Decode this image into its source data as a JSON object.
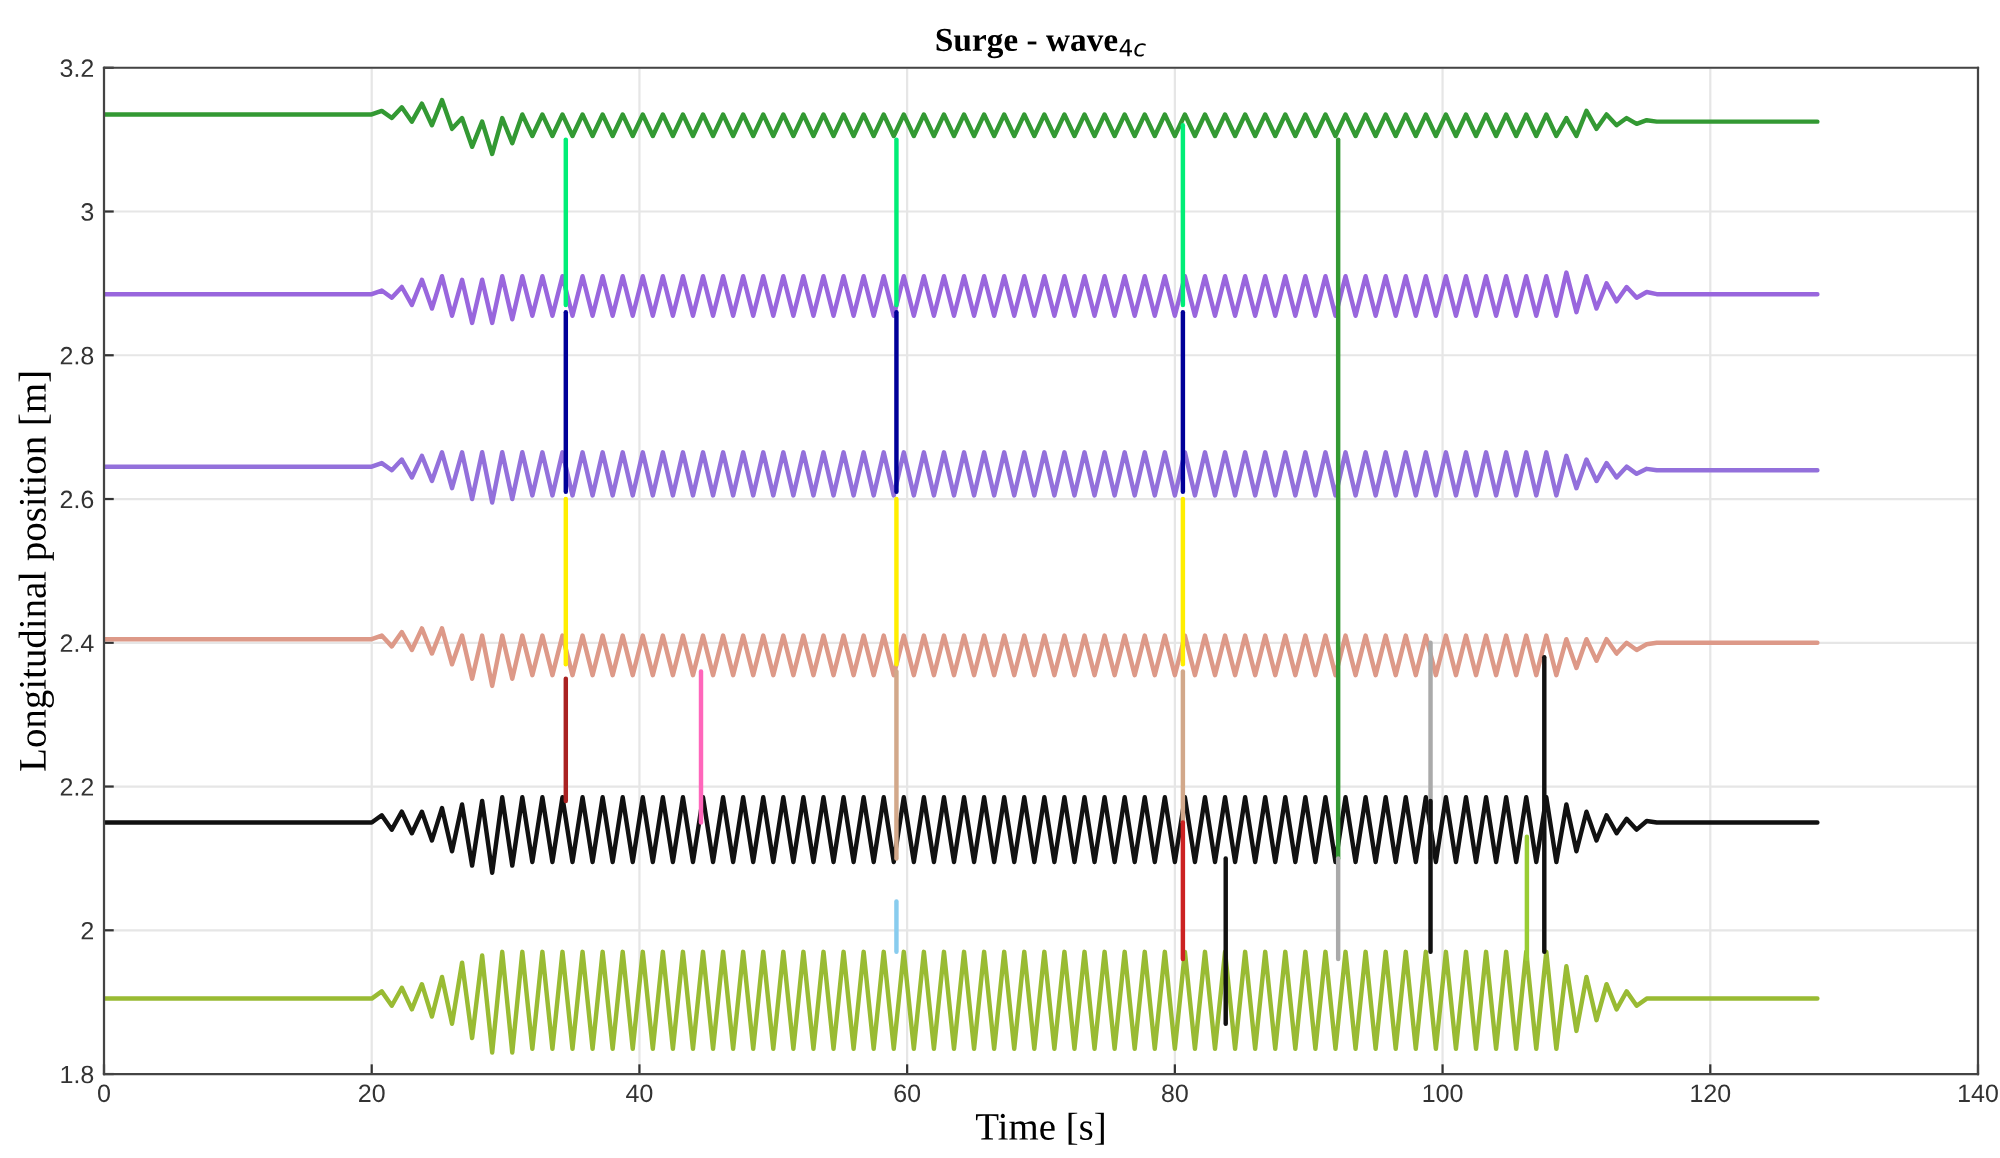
{
  "chart_data": {
    "type": "line",
    "title": "Surge - wave$_{4c}$",
    "xlabel": "Time [s]",
    "ylabel": "Longitudinal position [m]",
    "xlim": [
      0,
      140
    ],
    "ylim": [
      1.8,
      3.2
    ],
    "xticks": [
      0,
      20,
      40,
      60,
      80,
      100,
      120,
      140
    ],
    "yticks": [
      1.8,
      2,
      2.2,
      2.4,
      2.6,
      2.8,
      3,
      3.2
    ],
    "grid": true,
    "legend": false,
    "marker": "none",
    "line_style": "solid",
    "x": [
      0,
      20,
      20.75,
      21.5,
      22.25,
      23,
      23.75,
      24.5,
      25.25,
      26,
      26.75,
      27.5,
      28.25,
      29,
      29.75,
      30.5,
      31.25,
      32,
      32.75,
      33.5,
      34.25,
      35,
      35.75,
      36.5,
      37.25,
      38,
      38.75,
      39.5,
      40.25,
      41,
      41.75,
      42.5,
      43.25,
      44,
      44.75,
      45.5,
      46.25,
      47,
      47.75,
      48.5,
      49.25,
      50,
      50.75,
      51.5,
      52.25,
      53,
      53.75,
      54.5,
      55.25,
      56,
      56.75,
      57.5,
      58.25,
      59,
      59.75,
      60.5,
      61.25,
      62,
      62.75,
      63.5,
      64.25,
      65,
      65.75,
      66.5,
      67.25,
      68,
      68.75,
      69.5,
      70.25,
      71,
      71.75,
      72.5,
      73.25,
      74,
      74.75,
      75.5,
      76.25,
      77,
      77.75,
      78.5,
      79.25,
      80,
      80.75,
      81.5,
      82.25,
      83,
      83.75,
      84.5,
      85.25,
      86,
      86.75,
      87.5,
      88.25,
      89,
      89.75,
      90.5,
      91.25,
      92,
      92.75,
      93.5,
      94.25,
      95,
      95.75,
      96.5,
      97.25,
      98,
      98.75,
      99.5,
      100.25,
      101,
      101.75,
      102.5,
      103.25,
      104,
      104.75,
      105.5,
      106.25,
      107,
      107.75,
      108.5,
      109.25,
      110,
      110.75,
      111.5,
      112.25,
      113,
      113.75,
      114.5,
      115.25,
      116,
      128
    ],
    "series": [
      {
        "color": "#339933",
        "values": [
          3.135,
          3.135,
          3.14,
          3.13,
          3.145,
          3.125,
          3.15,
          3.12,
          3.155,
          3.115,
          3.13,
          3.09,
          3.125,
          3.08,
          3.13,
          3.095,
          3.135,
          3.105,
          3.135,
          3.105,
          3.135,
          3.105,
          3.135,
          3.105,
          3.135,
          3.105,
          3.135,
          3.105,
          3.135,
          3.105,
          3.135,
          3.105,
          3.135,
          3.105,
          3.135,
          3.105,
          3.135,
          3.105,
          3.135,
          3.105,
          3.135,
          3.105,
          3.135,
          3.105,
          3.135,
          3.105,
          3.135,
          3.105,
          3.135,
          3.105,
          3.135,
          3.105,
          3.135,
          3.105,
          3.135,
          3.105,
          3.135,
          3.105,
          3.135,
          3.105,
          3.135,
          3.105,
          3.135,
          3.105,
          3.135,
          3.105,
          3.135,
          3.105,
          3.135,
          3.105,
          3.135,
          3.105,
          3.135,
          3.105,
          3.135,
          3.105,
          3.135,
          3.105,
          3.135,
          3.105,
          3.135,
          3.105,
          3.135,
          3.105,
          3.135,
          3.105,
          3.135,
          3.105,
          3.135,
          3.105,
          3.135,
          3.105,
          3.135,
          3.105,
          3.135,
          3.105,
          3.135,
          3.105,
          3.135,
          3.105,
          3.135,
          3.105,
          3.135,
          3.105,
          3.135,
          3.105,
          3.135,
          3.105,
          3.135,
          3.105,
          3.135,
          3.105,
          3.135,
          3.105,
          3.135,
          3.105,
          3.135,
          3.105,
          3.135,
          3.105,
          3.13,
          3.105,
          3.14,
          3.115,
          3.135,
          3.12,
          3.13,
          3.122,
          3.127,
          3.125,
          3.125
        ]
      },
      {
        "color": "#9966dd",
        "values": [
          2.885,
          2.885,
          2.89,
          2.88,
          2.895,
          2.87,
          2.905,
          2.865,
          2.91,
          2.855,
          2.905,
          2.845,
          2.905,
          2.845,
          2.91,
          2.85,
          2.91,
          2.855,
          2.91,
          2.855,
          2.91,
          2.855,
          2.91,
          2.855,
          2.91,
          2.855,
          2.91,
          2.855,
          2.91,
          2.855,
          2.91,
          2.855,
          2.91,
          2.855,
          2.91,
          2.855,
          2.91,
          2.855,
          2.91,
          2.855,
          2.91,
          2.855,
          2.91,
          2.855,
          2.91,
          2.855,
          2.91,
          2.855,
          2.91,
          2.855,
          2.91,
          2.855,
          2.91,
          2.855,
          2.91,
          2.855,
          2.91,
          2.855,
          2.91,
          2.855,
          2.91,
          2.855,
          2.91,
          2.855,
          2.91,
          2.855,
          2.91,
          2.855,
          2.91,
          2.855,
          2.91,
          2.855,
          2.91,
          2.855,
          2.91,
          2.855,
          2.91,
          2.855,
          2.91,
          2.855,
          2.91,
          2.855,
          2.91,
          2.855,
          2.91,
          2.855,
          2.91,
          2.855,
          2.91,
          2.855,
          2.91,
          2.855,
          2.91,
          2.855,
          2.91,
          2.855,
          2.91,
          2.855,
          2.91,
          2.855,
          2.91,
          2.855,
          2.91,
          2.855,
          2.91,
          2.855,
          2.91,
          2.855,
          2.91,
          2.855,
          2.91,
          2.855,
          2.91,
          2.855,
          2.91,
          2.855,
          2.91,
          2.855,
          2.91,
          2.855,
          2.915,
          2.86,
          2.91,
          2.865,
          2.9,
          2.875,
          2.895,
          2.88,
          2.888,
          2.885,
          2.885
        ]
      },
      {
        "color": "#9370db",
        "values": [
          2.645,
          2.645,
          2.65,
          2.64,
          2.655,
          2.63,
          2.66,
          2.625,
          2.665,
          2.615,
          2.665,
          2.6,
          2.665,
          2.595,
          2.665,
          2.6,
          2.665,
          2.605,
          2.665,
          2.605,
          2.665,
          2.605,
          2.665,
          2.605,
          2.665,
          2.605,
          2.665,
          2.605,
          2.665,
          2.605,
          2.665,
          2.605,
          2.665,
          2.605,
          2.665,
          2.605,
          2.665,
          2.605,
          2.665,
          2.605,
          2.665,
          2.605,
          2.665,
          2.605,
          2.665,
          2.605,
          2.665,
          2.605,
          2.665,
          2.605,
          2.665,
          2.605,
          2.665,
          2.605,
          2.665,
          2.605,
          2.665,
          2.605,
          2.665,
          2.605,
          2.665,
          2.605,
          2.665,
          2.605,
          2.665,
          2.605,
          2.665,
          2.605,
          2.665,
          2.605,
          2.665,
          2.605,
          2.665,
          2.605,
          2.665,
          2.605,
          2.665,
          2.605,
          2.665,
          2.605,
          2.665,
          2.605,
          2.665,
          2.605,
          2.665,
          2.605,
          2.665,
          2.605,
          2.665,
          2.605,
          2.665,
          2.605,
          2.665,
          2.605,
          2.665,
          2.605,
          2.665,
          2.605,
          2.665,
          2.605,
          2.665,
          2.605,
          2.665,
          2.605,
          2.665,
          2.605,
          2.665,
          2.605,
          2.665,
          2.605,
          2.665,
          2.605,
          2.665,
          2.605,
          2.665,
          2.605,
          2.665,
          2.605,
          2.665,
          2.605,
          2.66,
          2.615,
          2.655,
          2.625,
          2.65,
          2.63,
          2.645,
          2.635,
          2.642,
          2.64,
          2.64
        ]
      },
      {
        "color": "#dd9988",
        "values": [
          2.405,
          2.405,
          2.41,
          2.395,
          2.415,
          2.39,
          2.42,
          2.385,
          2.42,
          2.37,
          2.41,
          2.35,
          2.41,
          2.34,
          2.41,
          2.35,
          2.41,
          2.355,
          2.41,
          2.355,
          2.41,
          2.355,
          2.41,
          2.355,
          2.41,
          2.355,
          2.41,
          2.355,
          2.41,
          2.355,
          2.41,
          2.355,
          2.41,
          2.355,
          2.41,
          2.355,
          2.41,
          2.355,
          2.41,
          2.355,
          2.41,
          2.355,
          2.41,
          2.355,
          2.41,
          2.355,
          2.41,
          2.355,
          2.41,
          2.355,
          2.41,
          2.355,
          2.41,
          2.355,
          2.41,
          2.355,
          2.41,
          2.355,
          2.41,
          2.355,
          2.41,
          2.355,
          2.41,
          2.355,
          2.41,
          2.355,
          2.41,
          2.355,
          2.41,
          2.355,
          2.41,
          2.355,
          2.41,
          2.355,
          2.41,
          2.355,
          2.41,
          2.355,
          2.41,
          2.355,
          2.41,
          2.355,
          2.41,
          2.355,
          2.41,
          2.355,
          2.41,
          2.355,
          2.41,
          2.355,
          2.41,
          2.355,
          2.41,
          2.355,
          2.41,
          2.355,
          2.41,
          2.355,
          2.41,
          2.355,
          2.41,
          2.355,
          2.41,
          2.355,
          2.41,
          2.355,
          2.41,
          2.355,
          2.41,
          2.355,
          2.41,
          2.355,
          2.41,
          2.355,
          2.41,
          2.355,
          2.41,
          2.355,
          2.41,
          2.355,
          2.405,
          2.365,
          2.405,
          2.375,
          2.405,
          2.385,
          2.4,
          2.39,
          2.398,
          2.4,
          2.4
        ]
      },
      {
        "color": "#111111",
        "values": [
          2.15,
          2.15,
          2.16,
          2.14,
          2.165,
          2.135,
          2.165,
          2.125,
          2.17,
          2.11,
          2.175,
          2.09,
          2.18,
          2.08,
          2.185,
          2.09,
          2.185,
          2.095,
          2.185,
          2.095,
          2.185,
          2.095,
          2.185,
          2.095,
          2.185,
          2.095,
          2.185,
          2.095,
          2.185,
          2.095,
          2.185,
          2.095,
          2.185,
          2.095,
          2.185,
          2.095,
          2.185,
          2.095,
          2.185,
          2.095,
          2.185,
          2.095,
          2.185,
          2.095,
          2.185,
          2.095,
          2.185,
          2.095,
          2.185,
          2.095,
          2.185,
          2.095,
          2.185,
          2.095,
          2.185,
          2.095,
          2.185,
          2.095,
          2.185,
          2.095,
          2.185,
          2.095,
          2.185,
          2.095,
          2.185,
          2.095,
          2.185,
          2.095,
          2.185,
          2.095,
          2.185,
          2.095,
          2.185,
          2.095,
          2.185,
          2.095,
          2.185,
          2.095,
          2.185,
          2.095,
          2.185,
          2.095,
          2.185,
          2.095,
          2.185,
          2.095,
          2.185,
          2.095,
          2.185,
          2.095,
          2.185,
          2.095,
          2.185,
          2.095,
          2.185,
          2.095,
          2.185,
          2.095,
          2.185,
          2.095,
          2.185,
          2.095,
          2.185,
          2.095,
          2.185,
          2.095,
          2.185,
          2.095,
          2.185,
          2.095,
          2.185,
          2.095,
          2.185,
          2.095,
          2.185,
          2.095,
          2.185,
          2.095,
          2.185,
          2.095,
          2.175,
          2.11,
          2.165,
          2.125,
          2.16,
          2.135,
          2.155,
          2.14,
          2.152,
          2.15,
          2.15
        ]
      },
      {
        "color": "#99bb33",
        "values": [
          1.905,
          1.905,
          1.915,
          1.895,
          1.92,
          1.89,
          1.925,
          1.88,
          1.935,
          1.87,
          1.955,
          1.85,
          1.965,
          1.83,
          1.97,
          1.83,
          1.97,
          1.835,
          1.97,
          1.835,
          1.97,
          1.835,
          1.97,
          1.835,
          1.97,
          1.835,
          1.97,
          1.835,
          1.97,
          1.835,
          1.97,
          1.835,
          1.97,
          1.835,
          1.97,
          1.835,
          1.97,
          1.835,
          1.97,
          1.835,
          1.97,
          1.835,
          1.97,
          1.835,
          1.97,
          1.835,
          1.97,
          1.835,
          1.97,
          1.835,
          1.97,
          1.835,
          1.97,
          1.835,
          1.97,
          1.835,
          1.97,
          1.835,
          1.97,
          1.835,
          1.97,
          1.835,
          1.97,
          1.835,
          1.97,
          1.835,
          1.97,
          1.835,
          1.97,
          1.835,
          1.97,
          1.835,
          1.97,
          1.835,
          1.97,
          1.835,
          1.97,
          1.835,
          1.97,
          1.835,
          1.97,
          1.835,
          1.97,
          1.835,
          1.97,
          1.835,
          1.97,
          1.835,
          1.97,
          1.835,
          1.97,
          1.835,
          1.97,
          1.835,
          1.97,
          1.835,
          1.97,
          1.835,
          1.97,
          1.835,
          1.97,
          1.835,
          1.97,
          1.835,
          1.97,
          1.835,
          1.97,
          1.835,
          1.97,
          1.835,
          1.97,
          1.835,
          1.97,
          1.835,
          1.97,
          1.835,
          1.97,
          1.835,
          1.97,
          1.835,
          1.95,
          1.86,
          1.935,
          1.875,
          1.925,
          1.89,
          1.915,
          1.895,
          1.905,
          1.905,
          1.905
        ]
      },
      {
        "color": "#00ee77",
        "x": [
          34.5,
          34.5
        ],
        "values": [
          3.1,
          2.87
        ]
      },
      {
        "color": "#000099",
        "x": [
          34.5,
          34.5
        ],
        "values": [
          2.86,
          2.61
        ]
      },
      {
        "color": "#ffee00",
        "x": [
          34.5,
          34.5
        ],
        "values": [
          2.6,
          2.37
        ]
      },
      {
        "color": "#aa2222",
        "x": [
          34.5,
          34.5
        ],
        "values": [
          2.35,
          2.18
        ]
      },
      {
        "color": "#ff66bb",
        "x": [
          44.6,
          44.6
        ],
        "values": [
          2.36,
          2.15
        ]
      },
      {
        "color": "#00ee77",
        "x": [
          59.2,
          59.2
        ],
        "values": [
          3.1,
          2.87
        ]
      },
      {
        "color": "#000099",
        "x": [
          59.2,
          59.2
        ],
        "values": [
          2.86,
          2.61
        ]
      },
      {
        "color": "#ffee00",
        "x": [
          59.2,
          59.2
        ],
        "values": [
          2.6,
          2.37
        ]
      },
      {
        "color": "#d2a88a",
        "x": [
          59.2,
          59.2
        ],
        "values": [
          2.36,
          2.1
        ]
      },
      {
        "color": "#88ccee",
        "x": [
          59.2,
          59.2
        ],
        "values": [
          1.97,
          2.04
        ]
      },
      {
        "color": "#00ee77",
        "x": [
          80.6,
          80.6
        ],
        "values": [
          3.12,
          2.87
        ]
      },
      {
        "color": "#000099",
        "x": [
          80.6,
          80.6
        ],
        "values": [
          2.86,
          2.61
        ]
      },
      {
        "color": "#ffee00",
        "x": [
          80.6,
          80.6
        ],
        "values": [
          2.6,
          2.37
        ]
      },
      {
        "color": "#d2a88a",
        "x": [
          80.6,
          80.6
        ],
        "values": [
          2.36,
          2.15
        ]
      },
      {
        "color": "#cc2222",
        "x": [
          80.6,
          80.6
        ],
        "values": [
          2.15,
          1.96
        ]
      },
      {
        "color": "#111111",
        "x": [
          83.8,
          83.8
        ],
        "values": [
          2.1,
          1.87
        ]
      },
      {
        "color": "#339933",
        "x": [
          92.2,
          92.2
        ],
        "values": [
          3.1,
          2.1
        ]
      },
      {
        "color": "#aaaaaa",
        "x": [
          92.2,
          92.2
        ],
        "values": [
          2.1,
          1.96
        ]
      },
      {
        "color": "#aaaaaa",
        "x": [
          99.1,
          99.1
        ],
        "values": [
          2.4,
          2.1
        ]
      },
      {
        "color": "#111111",
        "x": [
          99.1,
          99.1
        ],
        "values": [
          2.18,
          1.97
        ]
      },
      {
        "color": "#99cc33",
        "x": [
          106.3,
          106.3
        ],
        "values": [
          2.13,
          1.96
        ]
      },
      {
        "color": "#111111",
        "x": [
          107.6,
          107.6
        ],
        "values": [
          2.38,
          1.97
        ]
      }
    ]
  }
}
